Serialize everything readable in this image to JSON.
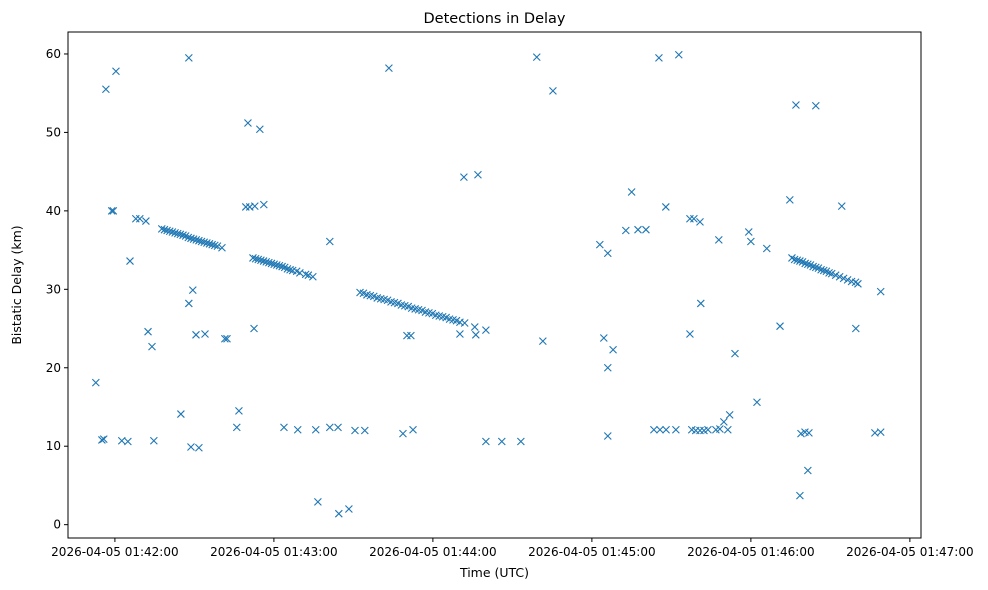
{
  "chart_data": {
    "type": "scatter",
    "title": "Detections in Delay",
    "xlabel": "Time (UTC)",
    "ylabel": "Bistatic Delay (km)",
    "x_origin": "2026-04-05 01:42:00",
    "x_units": "seconds since x_origin",
    "xlim": [
      -17.7,
      304.2
    ],
    "ylim": [
      -1.7,
      62.8
    ],
    "xticks": [
      {
        "value": 0,
        "label": "2026-04-05 01:42:00"
      },
      {
        "value": 60,
        "label": "2026-04-05 01:43:00"
      },
      {
        "value": 120,
        "label": "2026-04-05 01:44:00"
      },
      {
        "value": 180,
        "label": "2026-04-05 01:45:00"
      },
      {
        "value": 240,
        "label": "2026-04-05 01:46:00"
      },
      {
        "value": 300,
        "label": "2026-04-05 01:47:00"
      }
    ],
    "yticks": [
      {
        "value": 0,
        "label": "0"
      },
      {
        "value": 10,
        "label": "10"
      },
      {
        "value": 20,
        "label": "20"
      },
      {
        "value": 30,
        "label": "30"
      },
      {
        "value": 40,
        "label": "40"
      },
      {
        "value": 50,
        "label": "50"
      },
      {
        "value": 60,
        "label": "60"
      }
    ],
    "grid": false,
    "marker": "x",
    "color": "#1f77b4",
    "series": [
      {
        "name": "detections",
        "points": [
          [
            -7.2,
            18.1
          ],
          [
            -3.4,
            55.5
          ],
          [
            0.4,
            57.8
          ],
          [
            -4.9,
            10.8
          ],
          [
            -4.2,
            10.9
          ],
          [
            -1.2,
            40.0
          ],
          [
            -0.6,
            40.0
          ],
          [
            2.6,
            10.7
          ],
          [
            4.9,
            10.6
          ],
          [
            5.7,
            33.6
          ],
          [
            7.9,
            39.0
          ],
          [
            9.4,
            39.0
          ],
          [
            11.7,
            38.7
          ],
          [
            12.5,
            24.6
          ],
          [
            14.0,
            22.7
          ],
          [
            14.7,
            10.7
          ],
          [
            17.7,
            37.7
          ],
          [
            18.7,
            37.6
          ],
          [
            19.7,
            37.5
          ],
          [
            20.7,
            37.4
          ],
          [
            21.7,
            37.3
          ],
          [
            22.7,
            37.2
          ],
          [
            23.7,
            37.1
          ],
          [
            24.7,
            37.0
          ],
          [
            25.7,
            36.9
          ],
          [
            26.7,
            36.8
          ],
          [
            27.7,
            36.6
          ],
          [
            28.7,
            36.5
          ],
          [
            29.7,
            36.4
          ],
          [
            30.7,
            36.3
          ],
          [
            31.7,
            36.2
          ],
          [
            32.7,
            36.1
          ],
          [
            33.7,
            36.0
          ],
          [
            34.7,
            35.9
          ],
          [
            35.7,
            35.8
          ],
          [
            36.7,
            35.7
          ],
          [
            37.7,
            35.6
          ],
          [
            38.7,
            35.5
          ],
          [
            40.4,
            35.3
          ],
          [
            24.9,
            14.1
          ],
          [
            27.9,
            59.5
          ],
          [
            27.9,
            28.2
          ],
          [
            29.4,
            29.9
          ],
          [
            28.7,
            9.9
          ],
          [
            31.7,
            9.8
          ],
          [
            30.6,
            24.2
          ],
          [
            34.0,
            24.3
          ],
          [
            41.5,
            23.7
          ],
          [
            42.3,
            23.7
          ],
          [
            46.0,
            12.4
          ],
          [
            46.8,
            14.5
          ],
          [
            50.2,
            51.2
          ],
          [
            49.4,
            40.5
          ],
          [
            50.9,
            40.5
          ],
          [
            52.8,
            40.6
          ],
          [
            54.7,
            50.4
          ],
          [
            56.2,
            40.8
          ],
          [
            52.5,
            25.0
          ],
          [
            52.1,
            34.0
          ],
          [
            53.1,
            33.9
          ],
          [
            54.1,
            33.8
          ],
          [
            55.1,
            33.7
          ],
          [
            56.1,
            33.6
          ],
          [
            57.1,
            33.5
          ],
          [
            58.1,
            33.4
          ],
          [
            59.1,
            33.3
          ],
          [
            60.1,
            33.2
          ],
          [
            61.1,
            33.1
          ],
          [
            62.1,
            33.0
          ],
          [
            63.1,
            32.9
          ],
          [
            64.1,
            32.8
          ],
          [
            65.1,
            32.6
          ],
          [
            66.1,
            32.5
          ],
          [
            67.1,
            32.4
          ],
          [
            68.6,
            32.3
          ],
          [
            69.8,
            32.1
          ],
          [
            72.0,
            31.9
          ],
          [
            73.0,
            31.8
          ],
          [
            74.7,
            31.6
          ],
          [
            63.8,
            12.4
          ],
          [
            69.0,
            12.1
          ],
          [
            75.8,
            12.1
          ],
          [
            76.6,
            2.9
          ],
          [
            81.1,
            36.1
          ],
          [
            81.1,
            12.4
          ],
          [
            84.2,
            12.4
          ],
          [
            84.5,
            1.4
          ],
          [
            88.3,
            2.0
          ],
          [
            90.6,
            12.0
          ],
          [
            94.3,
            12.0
          ],
          [
            103.4,
            58.2
          ],
          [
            92.5,
            29.6
          ],
          [
            93.8,
            29.5
          ],
          [
            95.1,
            29.3
          ],
          [
            96.4,
            29.2
          ],
          [
            97.7,
            29.1
          ],
          [
            99.0,
            28.9
          ],
          [
            100.3,
            28.8
          ],
          [
            101.6,
            28.7
          ],
          [
            102.9,
            28.6
          ],
          [
            104.2,
            28.4
          ],
          [
            105.5,
            28.3
          ],
          [
            106.8,
            28.2
          ],
          [
            108.1,
            28.0
          ],
          [
            109.4,
            27.9
          ],
          [
            110.7,
            27.8
          ],
          [
            112.0,
            27.6
          ],
          [
            113.3,
            27.5
          ],
          [
            114.6,
            27.4
          ],
          [
            115.9,
            27.3
          ],
          [
            117.2,
            27.1
          ],
          [
            118.5,
            27.0
          ],
          [
            119.8,
            26.9
          ],
          [
            121.1,
            26.7
          ],
          [
            122.4,
            26.6
          ],
          [
            123.7,
            26.5
          ],
          [
            125.0,
            26.4
          ],
          [
            126.3,
            26.2
          ],
          [
            127.6,
            26.1
          ],
          [
            128.9,
            26.0
          ],
          [
            130.2,
            25.8
          ],
          [
            132.0,
            25.7
          ],
          [
            108.7,
            11.6
          ],
          [
            112.5,
            12.1
          ],
          [
            110.2,
            24.1
          ],
          [
            111.7,
            24.1
          ],
          [
            130.2,
            24.3
          ],
          [
            131.7,
            44.3
          ],
          [
            137.0,
            44.6
          ],
          [
            135.8,
            25.2
          ],
          [
            136.2,
            24.2
          ],
          [
            140.0,
            24.8
          ],
          [
            140.0,
            10.6
          ],
          [
            146.0,
            10.6
          ],
          [
            153.2,
            10.6
          ],
          [
            159.2,
            59.6
          ],
          [
            161.5,
            23.4
          ],
          [
            165.3,
            55.3
          ],
          [
            183.0,
            35.7
          ],
          [
            186.0,
            34.6
          ],
          [
            184.5,
            23.8
          ],
          [
            186.0,
            20.0
          ],
          [
            186.0,
            11.3
          ],
          [
            188.0,
            22.3
          ],
          [
            192.8,
            37.5
          ],
          [
            195.0,
            42.4
          ],
          [
            197.4,
            37.6
          ],
          [
            200.4,
            37.6
          ],
          [
            207.9,
            40.5
          ],
          [
            205.3,
            59.5
          ],
          [
            212.8,
            59.9
          ],
          [
            203.4,
            12.1
          ],
          [
            205.7,
            12.1
          ],
          [
            208.0,
            12.1
          ],
          [
            211.7,
            12.1
          ],
          [
            217.7,
            12.1
          ],
          [
            219.2,
            12.0
          ],
          [
            220.8,
            12.0
          ],
          [
            222.3,
            12.0
          ],
          [
            223.8,
            12.1
          ],
          [
            226.8,
            12.1
          ],
          [
            228.3,
            12.2
          ],
          [
            229.8,
            13.1
          ],
          [
            231.3,
            12.1
          ],
          [
            232.0,
            14.0
          ],
          [
            217.0,
            39.0
          ],
          [
            218.5,
            39.0
          ],
          [
            220.8,
            38.6
          ],
          [
            217.0,
            24.3
          ],
          [
            221.1,
            28.2
          ],
          [
            227.9,
            36.3
          ],
          [
            234.0,
            21.8
          ],
          [
            239.2,
            37.3
          ],
          [
            240.0,
            36.1
          ],
          [
            242.3,
            15.6
          ],
          [
            246.0,
            35.2
          ],
          [
            251.0,
            25.3
          ],
          [
            254.7,
            41.4
          ],
          [
            257.0,
            53.5
          ],
          [
            258.5,
            3.7
          ],
          [
            258.9,
            11.6
          ],
          [
            260.4,
            11.8
          ],
          [
            261.9,
            11.7
          ],
          [
            261.5,
            6.9
          ],
          [
            264.5,
            53.4
          ],
          [
            255.5,
            34.0
          ],
          [
            256.5,
            33.8
          ],
          [
            257.5,
            33.7
          ],
          [
            258.5,
            33.6
          ],
          [
            259.5,
            33.5
          ],
          [
            260.5,
            33.3
          ],
          [
            261.5,
            33.2
          ],
          [
            262.5,
            33.1
          ],
          [
            263.5,
            32.9
          ],
          [
            264.5,
            32.8
          ],
          [
            265.5,
            32.7
          ],
          [
            266.5,
            32.5
          ],
          [
            267.5,
            32.4
          ],
          [
            268.5,
            32.3
          ],
          [
            269.5,
            32.1
          ],
          [
            270.5,
            32.0
          ],
          [
            272.0,
            31.8
          ],
          [
            273.5,
            31.6
          ],
          [
            275.0,
            31.4
          ],
          [
            276.5,
            31.2
          ],
          [
            278.0,
            31.0
          ],
          [
            279.5,
            30.9
          ],
          [
            280.4,
            30.7
          ],
          [
            274.3,
            40.6
          ],
          [
            279.6,
            25.0
          ],
          [
            286.8,
            11.7
          ],
          [
            289.0,
            11.8
          ],
          [
            289.0,
            29.7
          ]
        ]
      }
    ]
  }
}
